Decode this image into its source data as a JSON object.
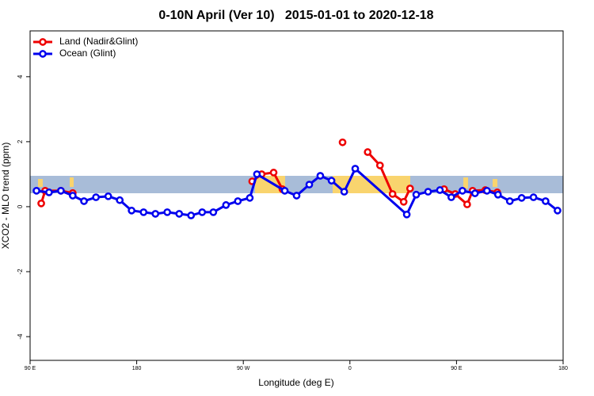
{
  "chart_data": {
    "type": "line",
    "title": "0-10N April (Ver 10)   2015-01-01 to 2020-12-18",
    "xlabel": "Longitude (deg E)",
    "ylabel": "XCO2 - MLO trend (ppm)",
    "xlim": [
      90,
      540
    ],
    "ylim": [
      -4.73,
      5.41
    ],
    "xticks": [
      {
        "value": 90,
        "label": "90 E"
      },
      {
        "value": 180,
        "label": "180"
      },
      {
        "value": 270,
        "label": "90 W"
      },
      {
        "value": 360,
        "label": "0"
      },
      {
        "value": 450,
        "label": "90 E"
      },
      {
        "value": 540,
        "label": "180"
      }
    ],
    "yticks": [
      -4,
      -2,
      0,
      2,
      4
    ],
    "legend": "top-left",
    "series": [
      {
        "name": "Land (Nadir&Glint)",
        "color": "#ee0000",
        "x": [
          99.4,
          102.7,
          116,
          126,
          null,
          277.5,
          285.5,
          295.6,
          303,
          null,
          353.8,
          null,
          375,
          385.4,
          396,
          405.4,
          410.8,
          null,
          439.5,
          448.9,
          459,
          463.6,
          474.3,
          484.4
        ],
        "values": [
          0.1,
          0.49,
          0.49,
          0.42,
          null,
          0.78,
          1.0,
          1.05,
          0.54,
          null,
          1.98,
          null,
          1.68,
          1.27,
          0.39,
          0.15,
          0.56,
          null,
          0.54,
          0.39,
          0.07,
          0.49,
          0.51,
          0.44
        ]
      },
      {
        "name": "Ocean (Glint)",
        "color": "#0000ee",
        "x": [
          95.4,
          106,
          116,
          126,
          135.5,
          145.6,
          156,
          165.7,
          175.7,
          185.8,
          195.8,
          205.8,
          215.9,
          225.9,
          235.3,
          244.7,
          255.4,
          265.4,
          275.5,
          281.5,
          305,
          315,
          325.7,
          335,
          344.5,
          355.2,
          364.5,
          408,
          416,
          426,
          436,
          445.6,
          455,
          465.6,
          475.7,
          485,
          495,
          505,
          515,
          525.2,
          535.3
        ],
        "values": [
          0.49,
          0.44,
          0.49,
          0.34,
          0.17,
          0.29,
          0.32,
          0.2,
          -0.12,
          -0.17,
          -0.22,
          -0.17,
          -0.22,
          -0.27,
          -0.17,
          -0.17,
          0.05,
          0.17,
          0.27,
          1.0,
          0.49,
          0.34,
          0.68,
          0.95,
          0.8,
          0.46,
          1.17,
          -0.24,
          0.37,
          0.46,
          0.51,
          0.29,
          0.49,
          0.41,
          0.49,
          0.37,
          0.17,
          0.27,
          0.29,
          0.17,
          -0.12
        ]
      }
    ]
  }
}
